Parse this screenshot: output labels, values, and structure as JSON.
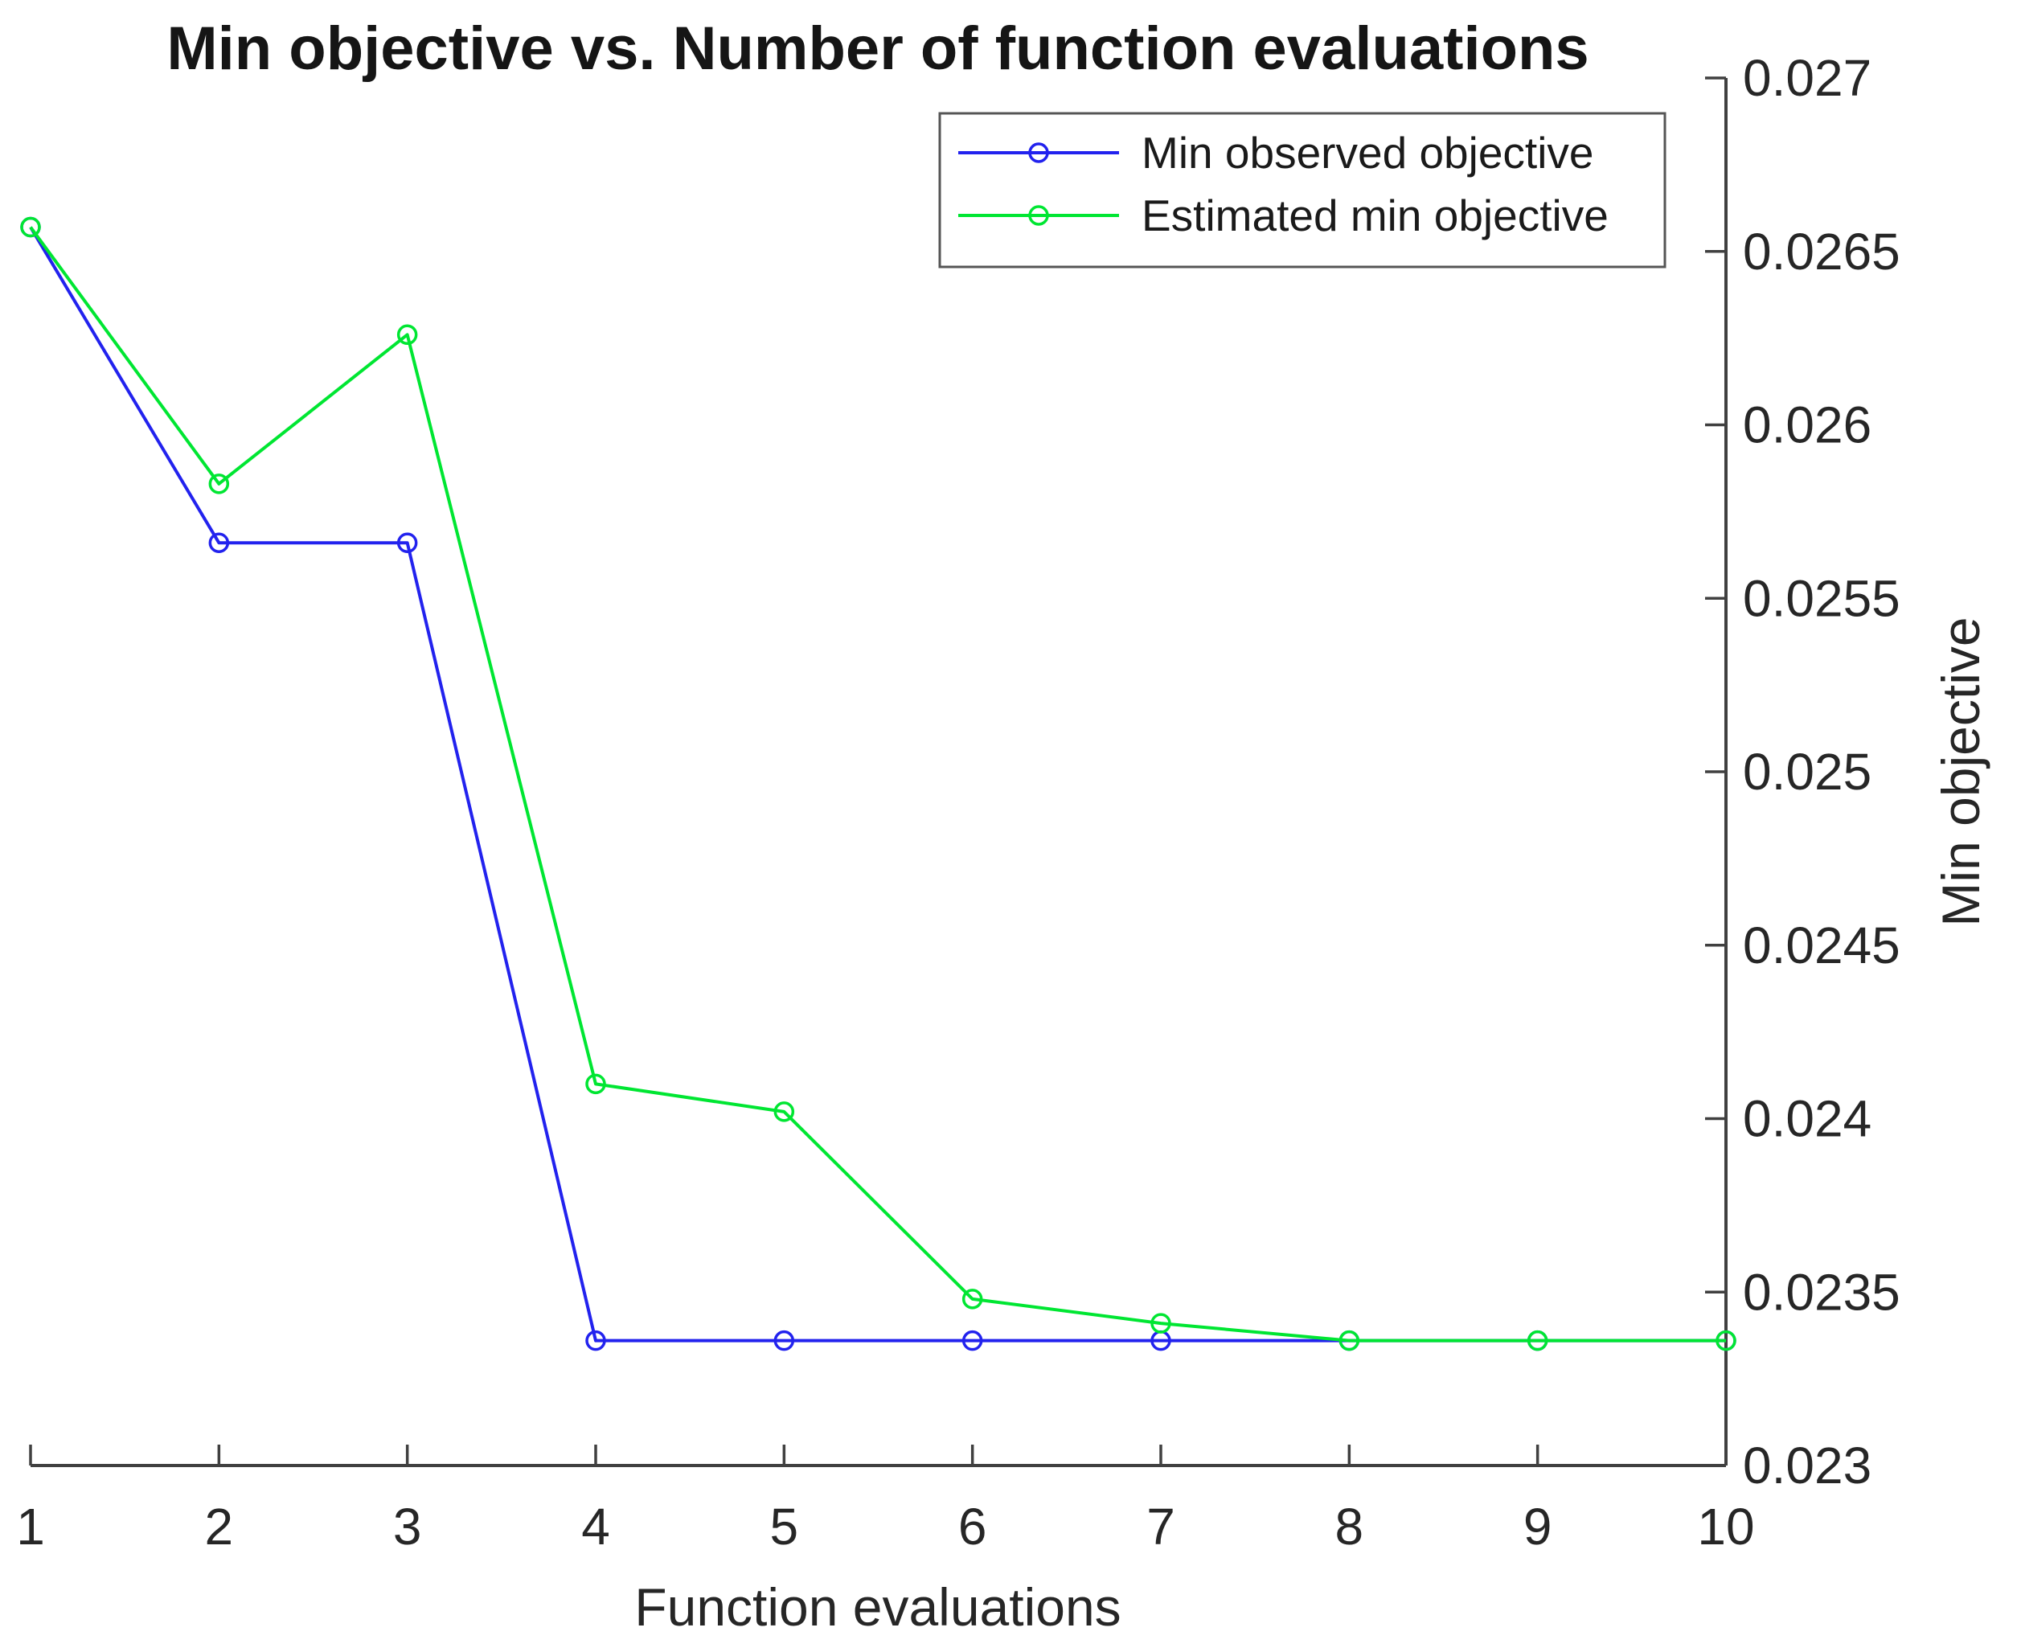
{
  "chart_data": {
    "type": "line",
    "title": "Min objective vs. Number of function evaluations",
    "xlabel": "Function evaluations",
    "ylabel": "Min objective",
    "xlim": [
      1,
      10
    ],
    "ylim": [
      0.023,
      0.027
    ],
    "x_ticks": [
      1,
      2,
      3,
      4,
      5,
      6,
      7,
      8,
      9,
      10
    ],
    "y_ticks": [
      0.023,
      0.0235,
      0.024,
      0.0245,
      0.025,
      0.0255,
      0.026,
      0.0265,
      0.027
    ],
    "x": [
      1,
      2,
      3,
      4,
      5,
      6,
      7,
      8,
      9,
      10
    ],
    "series": [
      {
        "name": "Min observed objective",
        "color": "#2222EE",
        "marker": "circle",
        "values": [
          0.02657,
          0.02566,
          0.02566,
          0.02336,
          0.02336,
          0.02336,
          0.02336,
          0.02336,
          0.02336,
          0.02336
        ]
      },
      {
        "name": "Estimated min objective",
        "color": "#00E632",
        "marker": "circle",
        "values": [
          0.02657,
          0.02583,
          0.02626,
          0.0241,
          0.02402,
          0.02348,
          0.02341,
          0.02336,
          0.02336,
          0.02336
        ]
      }
    ],
    "legend_position": "top-right",
    "grid": false,
    "y_axis_location": "right",
    "axis_color": "#404040"
  }
}
